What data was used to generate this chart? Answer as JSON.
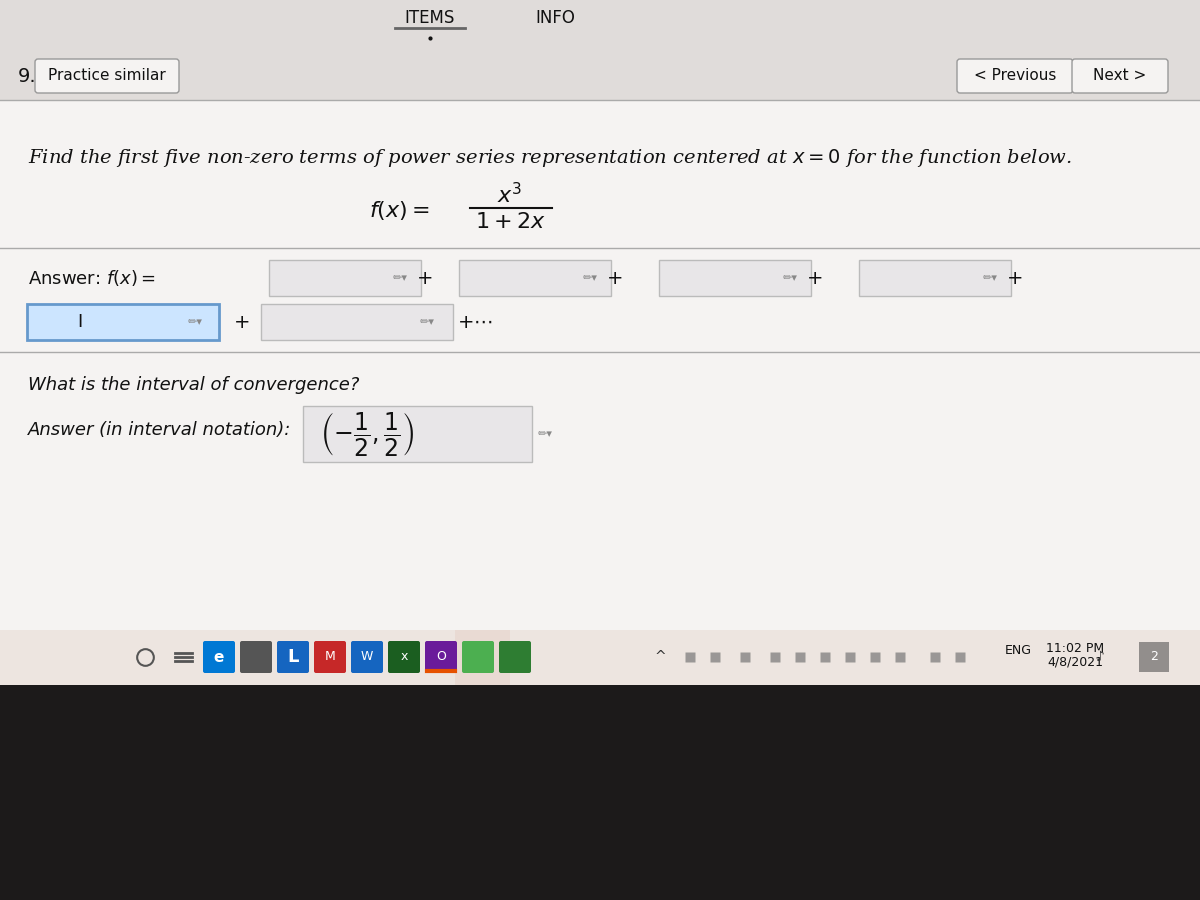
{
  "bg_color": "#d8d4d2",
  "content_bg": "#e0dcda",
  "white_bg": "#f5f3f2",
  "taskbar_bg": "#ede8e6",
  "taskbar_bottom": "#1c1a1a",
  "title_items": "ITEMS",
  "title_info": "INFO",
  "number": "9.",
  "practice_btn": "Practice similar",
  "prev_btn": "< Previous",
  "next_btn": "Next >",
  "question_text": "Find the first five non-zero terms of power series representation centered at $x = 0$ for the function below.",
  "time_text": "11:02 PM",
  "date_text": "4/8/2021",
  "eng_text": "ENG",
  "cursor_char": "I",
  "input_box_color": "#cce5ff",
  "input_box_border": "#6699cc",
  "answer_box_color": "#e8e6e8",
  "answer_box_border": "#bbbbbb",
  "text_color": "#111111",
  "separator_color": "#aaaaaa",
  "taskbar_color": "#ede5e0",
  "header_underline": "#666666",
  "pencil_color": "#888888",
  "interval_box_bg": "#e8e6e8"
}
